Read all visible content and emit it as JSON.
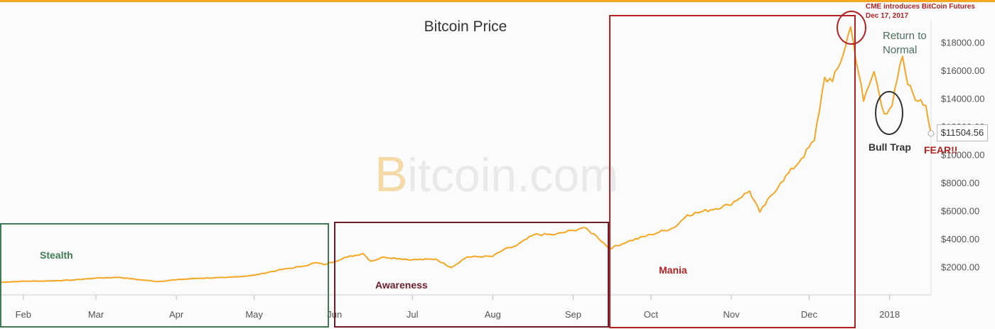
{
  "chart_data": {
    "type": "line",
    "title": "Bitcoin Price",
    "watermark": "Bitcoin.com",
    "xlabel": "",
    "ylabel": "",
    "x_ticks": [
      {
        "label": "Feb",
        "date": "2017-02-01"
      },
      {
        "label": "Mar",
        "date": "2017-03-01"
      },
      {
        "label": "Apr",
        "date": "2017-04-01"
      },
      {
        "label": "May",
        "date": "2017-05-01"
      },
      {
        "label": "Jun",
        "date": "2017-06-01"
      },
      {
        "label": "Jul",
        "date": "2017-07-01"
      },
      {
        "label": "Aug",
        "date": "2017-08-01"
      },
      {
        "label": "Sep",
        "date": "2017-09-01"
      },
      {
        "label": "Oct",
        "date": "2017-10-01"
      },
      {
        "label": "Nov",
        "date": "2017-11-01"
      },
      {
        "label": "Dec",
        "date": "2017-12-01"
      },
      {
        "label": "2018",
        "date": "2018-01-01"
      }
    ],
    "y_ticks": [
      2000,
      4000,
      6000,
      8000,
      10000,
      12000,
      14000,
      16000,
      18000
    ],
    "y_tick_labels": [
      "$2000.00",
      "$4000.00",
      "$6000.00",
      "$8000.00",
      "$10000.00",
      "$12000.00",
      "$14000.00",
      "$16000.00",
      "$18000.00"
    ],
    "ylim": [
      0,
      20000
    ],
    "xlim": [
      "2017-01-23",
      "2018-01-17"
    ],
    "grid": false,
    "series": [
      {
        "name": "",
        "color": "#f5a623",
        "points": [
          [
            "2017-01-23",
            900
          ],
          [
            "2017-02-01",
            970
          ],
          [
            "2017-02-10",
            990
          ],
          [
            "2017-02-20",
            1060
          ],
          [
            "2017-03-01",
            1200
          ],
          [
            "2017-03-10",
            1250
          ],
          [
            "2017-03-18",
            1080
          ],
          [
            "2017-03-25",
            950
          ],
          [
            "2017-04-01",
            1080
          ],
          [
            "2017-04-10",
            1190
          ],
          [
            "2017-04-20",
            1230
          ],
          [
            "2017-05-01",
            1400
          ],
          [
            "2017-05-10",
            1750
          ],
          [
            "2017-05-20",
            2050
          ],
          [
            "2017-05-25",
            2300
          ],
          [
            "2017-05-28",
            2150
          ],
          [
            "2017-06-06",
            2700
          ],
          [
            "2017-06-12",
            2950
          ],
          [
            "2017-06-15",
            2400
          ],
          [
            "2017-06-20",
            2700
          ],
          [
            "2017-07-01",
            2500
          ],
          [
            "2017-07-10",
            2550
          ],
          [
            "2017-07-16",
            1950
          ],
          [
            "2017-07-22",
            2700
          ],
          [
            "2017-08-01",
            2750
          ],
          [
            "2017-08-05",
            3200
          ],
          [
            "2017-08-10",
            3500
          ],
          [
            "2017-08-17",
            4300
          ],
          [
            "2017-08-25",
            4300
          ],
          [
            "2017-09-01",
            4600
          ],
          [
            "2017-09-05",
            4800
          ],
          [
            "2017-09-10",
            4200
          ],
          [
            "2017-09-15",
            3300
          ],
          [
            "2017-09-22",
            3800
          ],
          [
            "2017-10-01",
            4300
          ],
          [
            "2017-10-10",
            4800
          ],
          [
            "2017-10-15",
            5700
          ],
          [
            "2017-10-20",
            5900
          ],
          [
            "2017-10-31",
            6400
          ],
          [
            "2017-11-08",
            7400
          ],
          [
            "2017-11-12",
            5900
          ],
          [
            "2017-11-20",
            8000
          ],
          [
            "2017-11-28",
            9700
          ],
          [
            "2017-12-03",
            11000
          ],
          [
            "2017-12-07",
            15500
          ],
          [
            "2017-12-10",
            15200
          ],
          [
            "2017-12-13",
            16500
          ],
          [
            "2017-12-17",
            19100
          ],
          [
            "2017-12-22",
            13800
          ],
          [
            "2017-12-26",
            15900
          ],
          [
            "2017-12-30",
            12900
          ],
          [
            "2018-01-02",
            13500
          ],
          [
            "2018-01-06",
            17000
          ],
          [
            "2018-01-08",
            15000
          ],
          [
            "2018-01-12",
            13800
          ],
          [
            "2018-01-15",
            13500
          ],
          [
            "2018-01-17",
            11504.56
          ]
        ]
      }
    ],
    "current_price_label": "$11504.56",
    "annotations": {
      "stealth": "Stealth",
      "awareness": "Awareness",
      "mania": "Mania",
      "cme_line1": "CME introduces BitCoin Futures",
      "cme_line2": "Dec 17, 2017",
      "return_line1": "Return to",
      "return_line2": "Normal",
      "bull_trap": "Bull Trap",
      "fear": "FEAR!!"
    },
    "colors": {
      "stealth": "#3d7a55",
      "awareness": "#6b1f2b",
      "mania": "#b22222",
      "cme": "#b22222",
      "return": "#4d6e5a",
      "bull_trap": "#333333",
      "fear": "#b22222",
      "title": "#333333",
      "axis_text": "#555555",
      "top_strip": "#f5a623"
    }
  }
}
